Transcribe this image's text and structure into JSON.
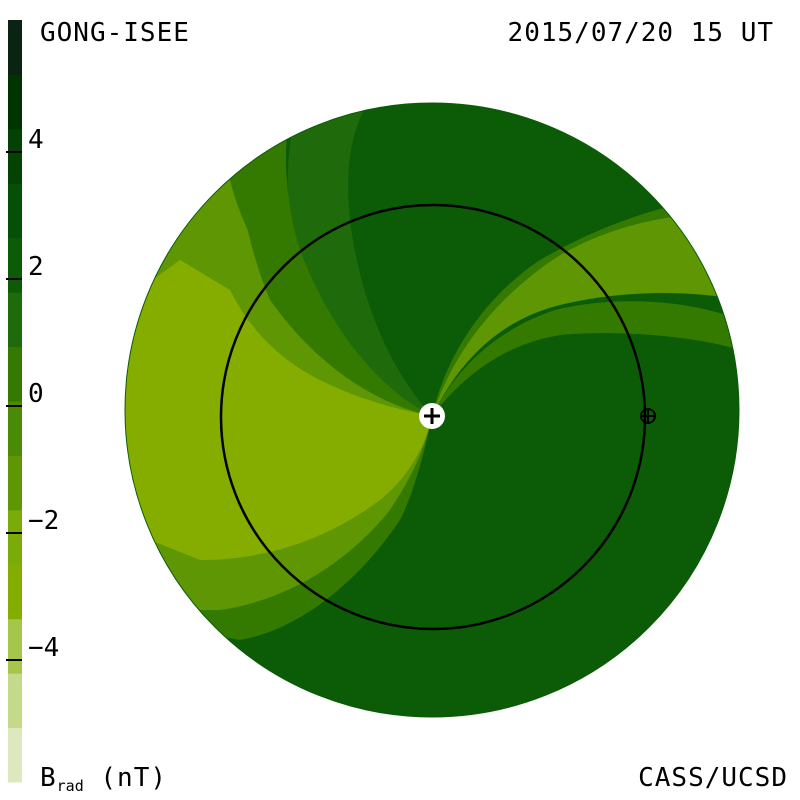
{
  "header": {
    "source": "GONG-ISEE",
    "timestamp": "2015/07/20 15 UT"
  },
  "footer": {
    "quantity": "B",
    "quantity_sub": "rad",
    "unit": " (nT)",
    "credit": "CASS/UCSD"
  },
  "colorbar": {
    "ticks": [
      {
        "label": "4",
        "value": 4
      },
      {
        "label": "2",
        "value": 2
      },
      {
        "label": "0",
        "value": 0
      },
      {
        "label": "−2",
        "value": -2
      },
      {
        "label": "−4",
        "value": -4
      }
    ],
    "range": [
      -6,
      6
    ],
    "colors": [
      "#dde8be",
      "#c4d98a",
      "#a5c64b",
      "#85ad00",
      "#7aab08",
      "#5e9604",
      "#4a8a06",
      "#347a00",
      "#1f6a0a",
      "#0b5b07",
      "#064f06",
      "#034203",
      "#003300",
      "#0a2312"
    ]
  },
  "map_colors": {
    "background": "#0b5b07",
    "band_lightest": "#85ad00",
    "band_light": "#5e9604",
    "band_mid": "#347a00",
    "band_dark": "#1f6a0a",
    "ring": "#000000",
    "sun_marker": "#ffffff"
  },
  "markers": {
    "sun": "plus-icon",
    "earth": "earth-symbol-icon"
  }
}
